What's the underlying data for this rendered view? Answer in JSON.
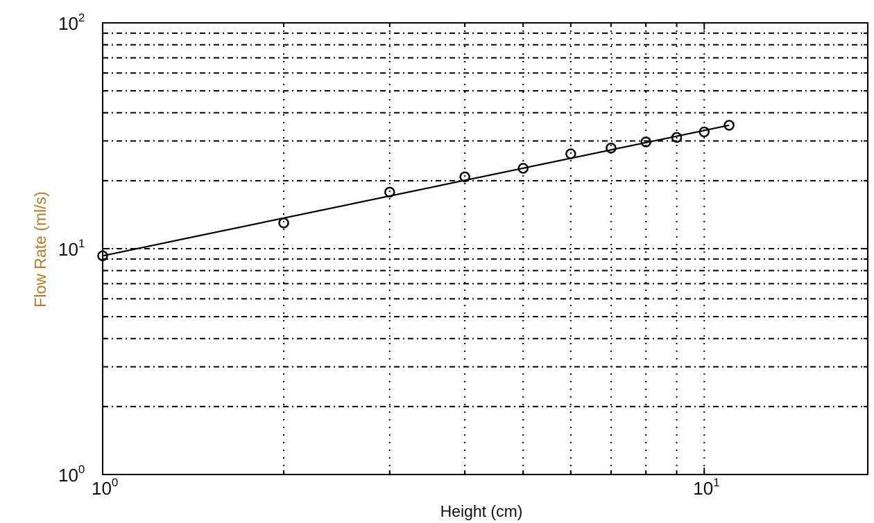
{
  "chart_data": {
    "type": "scatter",
    "xlabel": "Height (cm)",
    "ylabel": "Flow Rate (ml/s)",
    "xscale": "log",
    "yscale": "log",
    "xlim": [
      1,
      18.7
    ],
    "ylim": [
      1,
      100
    ],
    "grid": true,
    "x_ticks": [
      {
        "base": "10",
        "exp": "0",
        "value": 1
      },
      {
        "base": "10",
        "exp": "1",
        "value": 10
      }
    ],
    "y_ticks": [
      {
        "base": "10",
        "exp": "0",
        "value": 1
      },
      {
        "base": "10",
        "exp": "1",
        "value": 10
      },
      {
        "base": "10",
        "exp": "2",
        "value": 100
      }
    ],
    "series": [
      {
        "marker": "circle",
        "x": [
          1,
          2,
          3,
          4,
          5,
          6,
          7,
          8,
          9,
          10,
          11
        ],
        "y": [
          9.3,
          13.0,
          17.8,
          20.8,
          22.7,
          26.3,
          27.9,
          29.7,
          31.1,
          32.9,
          35.2
        ]
      }
    ],
    "fit_line": {
      "x": [
        1,
        11
      ],
      "y": [
        9.3,
        35.2
      ]
    },
    "colors": {
      "ylabel": "#b07a2a",
      "axis": "#000000",
      "grid": "#000000",
      "marker": "#000000"
    }
  }
}
